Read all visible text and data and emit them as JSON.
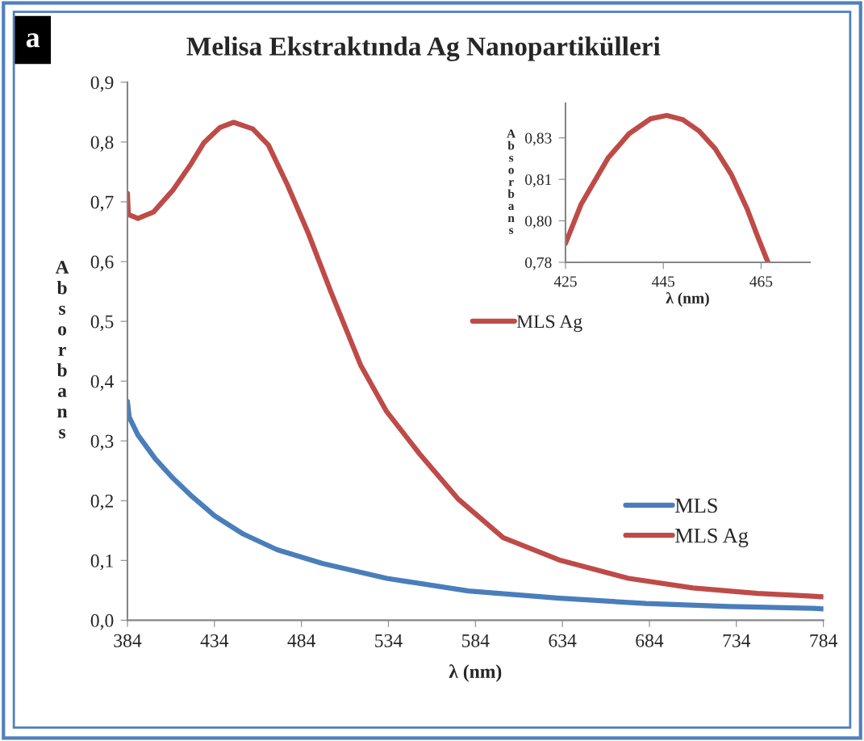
{
  "chart_data": [
    {
      "type": "line",
      "title": "Melisa Ekstraktında Ag Nanopartikülleri",
      "xlabel": "λ (nm)",
      "ylabel": "Absorbans",
      "annotations": [
        "a"
      ],
      "legend": "bottom right",
      "grid": false,
      "xlim": [
        384,
        784
      ],
      "xticks": [
        384,
        434,
        484,
        534,
        584,
        634,
        684,
        734,
        784
      ],
      "ylim": [
        0,
        0.9
      ],
      "yticks": [
        {
          "value": 0,
          "label": "0,0"
        },
        {
          "value": 0.1,
          "label": "0,1"
        },
        {
          "value": 0.2,
          "label": "0,2"
        },
        {
          "value": 0.3,
          "label": "0,3"
        },
        {
          "value": 0.4,
          "label": "0,4"
        },
        {
          "value": 0.5,
          "label": "0,5"
        },
        {
          "value": 0.6,
          "label": "0,6"
        },
        {
          "value": 0.7,
          "label": "0,7"
        },
        {
          "value": 0.8,
          "label": "0,8"
        },
        {
          "value": 0.9,
          "label": "0,9"
        }
      ],
      "series": [
        {
          "name": "MLS",
          "color": "#4a7ebb",
          "x": [
            384,
            385,
            390,
            400,
            410,
            420,
            434,
            450,
            470,
            496,
            533,
            580,
            631,
            682,
            730,
            778,
            784
          ],
          "values": [
            0.366,
            0.34,
            0.31,
            0.27,
            0.238,
            0.21,
            0.175,
            0.145,
            0.118,
            0.095,
            0.07,
            0.049,
            0.037,
            0.028,
            0.023,
            0.02,
            0.019
          ]
        },
        {
          "name": "MLS Ag",
          "color": "#be4b48",
          "x": [
            384,
            384.5,
            390,
            399,
            410,
            420,
            428,
            437,
            445,
            456,
            465,
            476,
            488,
            501,
            518,
            533,
            552,
            574,
            600,
            633,
            672,
            709,
            746,
            778,
            784
          ],
          "values": [
            0.714,
            0.679,
            0.672,
            0.683,
            0.719,
            0.761,
            0.799,
            0.824,
            0.833,
            0.822,
            0.795,
            0.728,
            0.647,
            0.549,
            0.427,
            0.349,
            0.278,
            0.203,
            0.138,
            0.1,
            0.07,
            0.054,
            0.045,
            0.04,
            0.039
          ]
        }
      ]
    },
    {
      "type": "line",
      "xlabel": "λ (nm)",
      "ylabel": "Absorbans",
      "legend": "bottom left",
      "grid": false,
      "xlim": [
        425,
        475
      ],
      "xticks": [
        425,
        445,
        465
      ],
      "ylim": [
        0.78,
        0.8375
      ],
      "yticks": [
        {
          "value": 0.78,
          "label": "0,78"
        },
        {
          "value": 0.795,
          "label": "0,80"
        },
        {
          "value": 0.81,
          "label": "0,81"
        },
        {
          "value": 0.825,
          "label": "0,83"
        }
      ],
      "series": [
        {
          "name": "MLS Ag",
          "color": "#be4b48",
          "x": [
            425,
            428.2,
            433.7,
            438,
            442.4,
            445.7,
            449,
            452.3,
            455.6,
            458.9,
            462.2,
            464.3,
            466.4
          ],
          "values": [
            0.7868,
            0.801,
            0.8177,
            0.8265,
            0.8319,
            0.8331,
            0.8316,
            0.8275,
            0.8211,
            0.8118,
            0.7991,
            0.7893,
            0.78
          ]
        }
      ]
    }
  ]
}
